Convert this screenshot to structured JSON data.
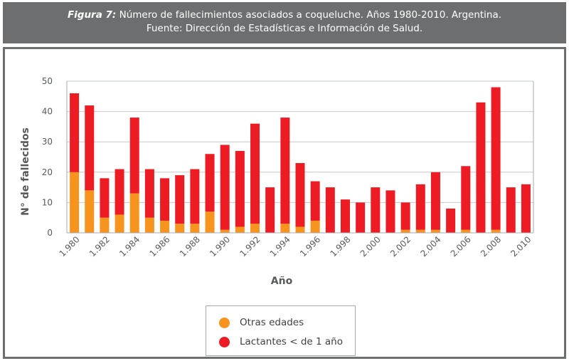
{
  "header": {
    "figure_label": "Figura 7:",
    "title": "Número de fallecimientos asociados a coqueluche. Años 1980-2010. Argentina.",
    "source": "Fuente: Dirección de Estadísticas e Información de Salud."
  },
  "colors": {
    "header_bg": "#6d6e70",
    "otras": "#f7941d",
    "lactantes": "#ed1c24"
  },
  "chart_data": {
    "type": "bar",
    "stacked": true,
    "xlabel": "Año",
    "ylabel": "N° de fallecidos",
    "ylim": [
      0,
      50
    ],
    "yticks": [
      0,
      10,
      20,
      30,
      40,
      50
    ],
    "grid": true,
    "legend_position": "bottom-center",
    "x": [
      1980,
      1981,
      1982,
      1983,
      1984,
      1985,
      1986,
      1987,
      1988,
      1989,
      1990,
      1991,
      1992,
      1993,
      1994,
      1995,
      1996,
      1997,
      1998,
      1999,
      2000,
      2001,
      2002,
      2003,
      2004,
      2005,
      2006,
      2007,
      2008,
      2009,
      2010
    ],
    "xtick_labels": [
      "1.980",
      "1.982",
      "1.984",
      "1.986",
      "1.988",
      "1.990",
      "1.992",
      "1.994",
      "1.996",
      "1.998",
      "2.000",
      "2.002",
      "2.004",
      "2.006",
      "2.008",
      "2.010"
    ],
    "series": [
      {
        "name": "Otras edades",
        "values": [
          20,
          14,
          5,
          6,
          13,
          5,
          4,
          3,
          3,
          7,
          1,
          2,
          3,
          0,
          3,
          2,
          4,
          0,
          0,
          0,
          0,
          0,
          1,
          1,
          1,
          0,
          1,
          0,
          1,
          0,
          0
        ]
      },
      {
        "name": "Lactantes < de 1 año",
        "values": [
          26,
          28,
          13,
          15,
          25,
          16,
          14,
          16,
          18,
          19,
          28,
          25,
          33,
          15,
          35,
          21,
          13,
          15,
          11,
          10,
          15,
          14,
          9,
          15,
          19,
          8,
          21,
          43,
          47,
          15,
          16
        ]
      }
    ]
  }
}
